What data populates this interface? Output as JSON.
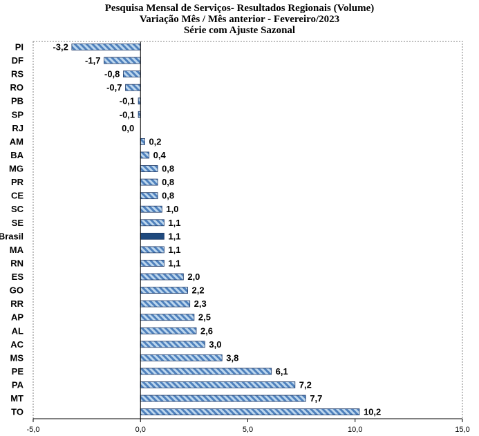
{
  "chart_data": {
    "type": "bar",
    "orientation": "horizontal",
    "title": "Pesquisa Mensal de Serviços- Resultados Regionais (Volume)",
    "subtitle_lines": [
      "Variação Mês / Mês anterior - Fevereiro/2023",
      "Série com Ajuste Sazonal"
    ],
    "categories": [
      "PI",
      "DF",
      "RS",
      "RO",
      "PB",
      "SP",
      "RJ",
      "AM",
      "BA",
      "MG",
      "PR",
      "CE",
      "SC",
      "SE",
      "Brasil",
      "MA",
      "RN",
      "ES",
      "GO",
      "RR",
      "AP",
      "AL",
      "AC",
      "MS",
      "PE",
      "PA",
      "MT",
      "TO"
    ],
    "values": [
      -3.2,
      -1.7,
      -0.8,
      -0.7,
      -0.1,
      -0.1,
      0.0,
      0.2,
      0.4,
      0.8,
      0.8,
      0.8,
      1.0,
      1.1,
      1.1,
      1.1,
      1.1,
      2.0,
      2.2,
      2.3,
      2.5,
      2.6,
      3.0,
      3.8,
      6.1,
      7.2,
      7.7,
      10.2
    ],
    "value_labels": [
      "-3,2",
      "-1,7",
      "-0,8",
      "-0,7",
      "-0,1",
      "-0,1",
      "0,0",
      "0,2",
      "0,4",
      "0,8",
      "0,8",
      "0,8",
      "1,0",
      "1,1",
      "1,1",
      "1,1",
      "1,1",
      "2,0",
      "2,2",
      "2,3",
      "2,5",
      "2,6",
      "3,0",
      "3,8",
      "6,1",
      "7,2",
      "7,7",
      "10,2"
    ],
    "highlight_category": "Brasil",
    "xlim": [
      -5.0,
      15.0
    ],
    "x_ticks": [
      -5.0,
      0.0,
      5.0,
      10.0,
      15.0
    ],
    "x_tick_labels": [
      "-5,0",
      "0,0",
      "5,0",
      "10,0",
      "15,0"
    ],
    "xlabel": "",
    "ylabel": "",
    "grid": false,
    "colors": {
      "bar_fill": "#bdd7ee",
      "bar_hatch": "#4f81bd",
      "bar_outline": "#1f3864",
      "highlight_fill": "#1f497d",
      "plot_border": "#808080"
    }
  }
}
